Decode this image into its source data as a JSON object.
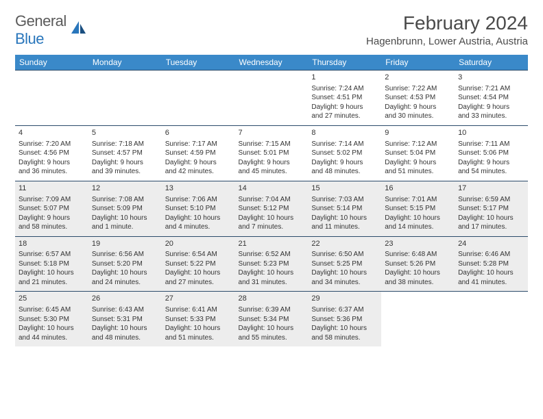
{
  "brand": {
    "name_a": "General",
    "name_b": "Blue"
  },
  "title": "February 2024",
  "location": "Hagenbrunn, Lower Austria, Austria",
  "colors": {
    "header_bg": "#3a89c9",
    "header_text": "#ffffff",
    "row_border": "#2a4a6a",
    "shaded_bg": "#ededed",
    "text": "#333333",
    "brand_gray": "#5a5a5a",
    "brand_blue": "#2976bb"
  },
  "day_headers": [
    "Sunday",
    "Monday",
    "Tuesday",
    "Wednesday",
    "Thursday",
    "Friday",
    "Saturday"
  ],
  "weeks": [
    {
      "shaded": false,
      "cells": [
        {
          "day": "",
          "lines": []
        },
        {
          "day": "",
          "lines": []
        },
        {
          "day": "",
          "lines": []
        },
        {
          "day": "",
          "lines": []
        },
        {
          "day": "1",
          "lines": [
            "Sunrise: 7:24 AM",
            "Sunset: 4:51 PM",
            "Daylight: 9 hours",
            "and 27 minutes."
          ]
        },
        {
          "day": "2",
          "lines": [
            "Sunrise: 7:22 AM",
            "Sunset: 4:53 PM",
            "Daylight: 9 hours",
            "and 30 minutes."
          ]
        },
        {
          "day": "3",
          "lines": [
            "Sunrise: 7:21 AM",
            "Sunset: 4:54 PM",
            "Daylight: 9 hours",
            "and 33 minutes."
          ]
        }
      ]
    },
    {
      "shaded": false,
      "cells": [
        {
          "day": "4",
          "lines": [
            "Sunrise: 7:20 AM",
            "Sunset: 4:56 PM",
            "Daylight: 9 hours",
            "and 36 minutes."
          ]
        },
        {
          "day": "5",
          "lines": [
            "Sunrise: 7:18 AM",
            "Sunset: 4:57 PM",
            "Daylight: 9 hours",
            "and 39 minutes."
          ]
        },
        {
          "day": "6",
          "lines": [
            "Sunrise: 7:17 AM",
            "Sunset: 4:59 PM",
            "Daylight: 9 hours",
            "and 42 minutes."
          ]
        },
        {
          "day": "7",
          "lines": [
            "Sunrise: 7:15 AM",
            "Sunset: 5:01 PM",
            "Daylight: 9 hours",
            "and 45 minutes."
          ]
        },
        {
          "day": "8",
          "lines": [
            "Sunrise: 7:14 AM",
            "Sunset: 5:02 PM",
            "Daylight: 9 hours",
            "and 48 minutes."
          ]
        },
        {
          "day": "9",
          "lines": [
            "Sunrise: 7:12 AM",
            "Sunset: 5:04 PM",
            "Daylight: 9 hours",
            "and 51 minutes."
          ]
        },
        {
          "day": "10",
          "lines": [
            "Sunrise: 7:11 AM",
            "Sunset: 5:06 PM",
            "Daylight: 9 hours",
            "and 54 minutes."
          ]
        }
      ]
    },
    {
      "shaded": true,
      "cells": [
        {
          "day": "11",
          "lines": [
            "Sunrise: 7:09 AM",
            "Sunset: 5:07 PM",
            "Daylight: 9 hours",
            "and 58 minutes."
          ]
        },
        {
          "day": "12",
          "lines": [
            "Sunrise: 7:08 AM",
            "Sunset: 5:09 PM",
            "Daylight: 10 hours",
            "and 1 minute."
          ]
        },
        {
          "day": "13",
          "lines": [
            "Sunrise: 7:06 AM",
            "Sunset: 5:10 PM",
            "Daylight: 10 hours",
            "and 4 minutes."
          ]
        },
        {
          "day": "14",
          "lines": [
            "Sunrise: 7:04 AM",
            "Sunset: 5:12 PM",
            "Daylight: 10 hours",
            "and 7 minutes."
          ]
        },
        {
          "day": "15",
          "lines": [
            "Sunrise: 7:03 AM",
            "Sunset: 5:14 PM",
            "Daylight: 10 hours",
            "and 11 minutes."
          ]
        },
        {
          "day": "16",
          "lines": [
            "Sunrise: 7:01 AM",
            "Sunset: 5:15 PM",
            "Daylight: 10 hours",
            "and 14 minutes."
          ]
        },
        {
          "day": "17",
          "lines": [
            "Sunrise: 6:59 AM",
            "Sunset: 5:17 PM",
            "Daylight: 10 hours",
            "and 17 minutes."
          ]
        }
      ]
    },
    {
      "shaded": true,
      "cells": [
        {
          "day": "18",
          "lines": [
            "Sunrise: 6:57 AM",
            "Sunset: 5:18 PM",
            "Daylight: 10 hours",
            "and 21 minutes."
          ]
        },
        {
          "day": "19",
          "lines": [
            "Sunrise: 6:56 AM",
            "Sunset: 5:20 PM",
            "Daylight: 10 hours",
            "and 24 minutes."
          ]
        },
        {
          "day": "20",
          "lines": [
            "Sunrise: 6:54 AM",
            "Sunset: 5:22 PM",
            "Daylight: 10 hours",
            "and 27 minutes."
          ]
        },
        {
          "day": "21",
          "lines": [
            "Sunrise: 6:52 AM",
            "Sunset: 5:23 PM",
            "Daylight: 10 hours",
            "and 31 minutes."
          ]
        },
        {
          "day": "22",
          "lines": [
            "Sunrise: 6:50 AM",
            "Sunset: 5:25 PM",
            "Daylight: 10 hours",
            "and 34 minutes."
          ]
        },
        {
          "day": "23",
          "lines": [
            "Sunrise: 6:48 AM",
            "Sunset: 5:26 PM",
            "Daylight: 10 hours",
            "and 38 minutes."
          ]
        },
        {
          "day": "24",
          "lines": [
            "Sunrise: 6:46 AM",
            "Sunset: 5:28 PM",
            "Daylight: 10 hours",
            "and 41 minutes."
          ]
        }
      ]
    },
    {
      "shaded": true,
      "cells": [
        {
          "day": "25",
          "lines": [
            "Sunrise: 6:45 AM",
            "Sunset: 5:30 PM",
            "Daylight: 10 hours",
            "and 44 minutes."
          ]
        },
        {
          "day": "26",
          "lines": [
            "Sunrise: 6:43 AM",
            "Sunset: 5:31 PM",
            "Daylight: 10 hours",
            "and 48 minutes."
          ]
        },
        {
          "day": "27",
          "lines": [
            "Sunrise: 6:41 AM",
            "Sunset: 5:33 PM",
            "Daylight: 10 hours",
            "and 51 minutes."
          ]
        },
        {
          "day": "28",
          "lines": [
            "Sunrise: 6:39 AM",
            "Sunset: 5:34 PM",
            "Daylight: 10 hours",
            "and 55 minutes."
          ]
        },
        {
          "day": "29",
          "lines": [
            "Sunrise: 6:37 AM",
            "Sunset: 5:36 PM",
            "Daylight: 10 hours",
            "and 58 minutes."
          ]
        },
        {
          "day": "",
          "lines": []
        },
        {
          "day": "",
          "lines": []
        }
      ]
    }
  ]
}
